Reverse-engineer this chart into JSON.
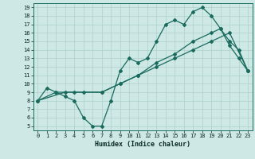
{
  "title": "",
  "xlabel": "Humidex (Indice chaleur)",
  "bg_color": "#cde8e5",
  "line_color": "#1a6b5e",
  "grid_color": "#aed0cc",
  "xlim": [
    -0.5,
    23.5
  ],
  "ylim": [
    4.5,
    19.5
  ],
  "xticks": [
    0,
    1,
    2,
    3,
    4,
    5,
    6,
    7,
    8,
    9,
    10,
    11,
    12,
    13,
    14,
    15,
    16,
    17,
    18,
    19,
    20,
    21,
    22,
    23
  ],
  "yticks": [
    5,
    6,
    7,
    8,
    9,
    10,
    11,
    12,
    13,
    14,
    15,
    16,
    17,
    18,
    19
  ],
  "line1_x": [
    0,
    1,
    2,
    3,
    4,
    5,
    6,
    7,
    8,
    9,
    10,
    11,
    12,
    13,
    14,
    15,
    16,
    17,
    18,
    19,
    20,
    21,
    22,
    23
  ],
  "line1_y": [
    8,
    9.5,
    9,
    8.5,
    8,
    6,
    5,
    5,
    8,
    11.5,
    13,
    12.5,
    13,
    15,
    17,
    17.5,
    17,
    18.5,
    19,
    18,
    16.5,
    14.5,
    13,
    11.5
  ],
  "line2_x": [
    0,
    2,
    4,
    7,
    9,
    11,
    13,
    15,
    17,
    19,
    20,
    21,
    22,
    23
  ],
  "line2_y": [
    8,
    9,
    9,
    9,
    10,
    11,
    12.5,
    13.5,
    15,
    16,
    16.5,
    15,
    14,
    11.5
  ],
  "line3_x": [
    0,
    3,
    5,
    7,
    9,
    11,
    13,
    15,
    17,
    19,
    21,
    23
  ],
  "line3_y": [
    8,
    9,
    9,
    9,
    10,
    11,
    12,
    13,
    14,
    15,
    16,
    11.5
  ]
}
